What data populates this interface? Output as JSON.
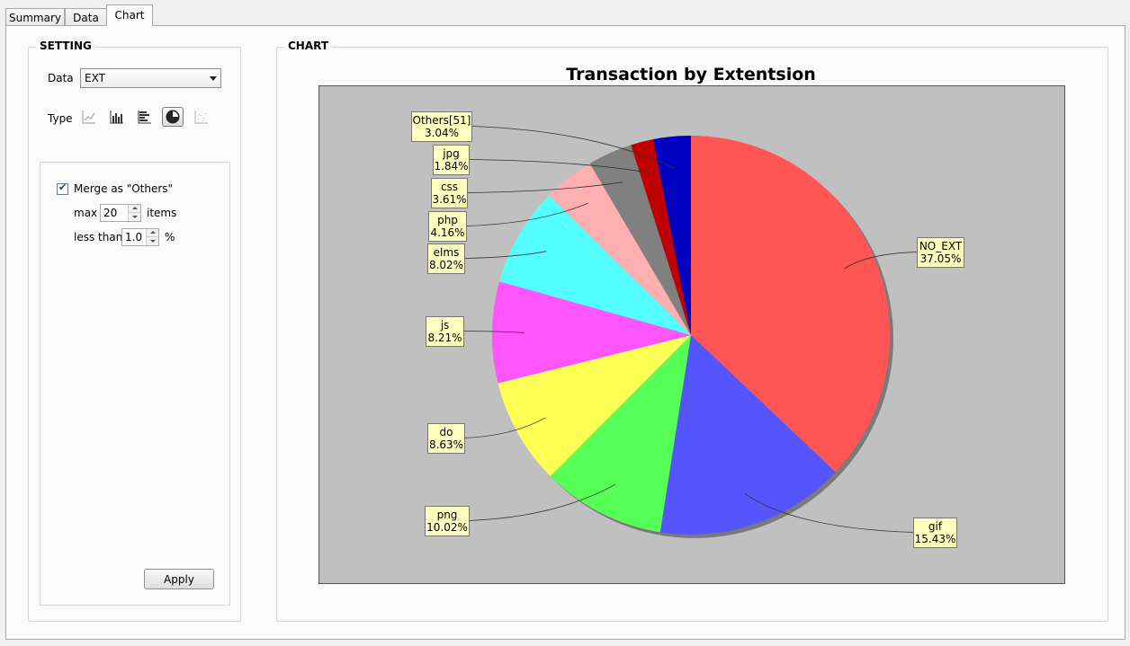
{
  "tabs": [
    {
      "label": "Summary"
    },
    {
      "label": "Data"
    },
    {
      "label": "Chart"
    }
  ],
  "setting": {
    "title": "SETTING",
    "data_label": "Data",
    "data_value": "EXT",
    "type_label": "Type",
    "type_icons": [
      "line-chart-icon",
      "bar-chart-icon",
      "horizontal-bar-chart-icon",
      "pie-chart-icon",
      "scatter-chart-icon"
    ],
    "selected_type": "pie-chart-icon",
    "merge_label": "Merge as \"Others\"",
    "merge_checked": true,
    "max_label": "max",
    "max_value": "20",
    "items_label": "items",
    "less_than_label": "less than",
    "less_than_value": "1.0",
    "percent_label": "%",
    "apply_label": "Apply"
  },
  "chart_panel_title": "CHART",
  "chart_data": {
    "type": "pie",
    "title": "Transaction by Extentsion",
    "background": "#c0c0c0",
    "slices": [
      {
        "label": "NO_EXT",
        "percent_label": "37.05%",
        "value": 37.05,
        "color": "#ff5555"
      },
      {
        "label": "gif",
        "percent_label": "15.43%",
        "value": 15.43,
        "color": "#5555ff"
      },
      {
        "label": "png",
        "percent_label": "10.02%",
        "value": 10.02,
        "color": "#55ff55"
      },
      {
        "label": "do",
        "percent_label": "8.63%",
        "value": 8.63,
        "color": "#ffff55"
      },
      {
        "label": "js",
        "percent_label": "8.21%",
        "value": 8.21,
        "color": "#ff55ff"
      },
      {
        "label": "elms",
        "percent_label": "8.02%",
        "value": 8.02,
        "color": "#55ffff"
      },
      {
        "label": "php",
        "percent_label": "4.16%",
        "value": 4.16,
        "color": "#ffafaf"
      },
      {
        "label": "css",
        "percent_label": "3.61%",
        "value": 3.61,
        "color": "#808080"
      },
      {
        "label": "jpg",
        "percent_label": "1.84%",
        "value": 1.84,
        "color": "#c00000"
      },
      {
        "label": "Others[51]",
        "percent_label": "3.04%",
        "value": 3.04,
        "color": "#0000c0"
      }
    ]
  }
}
